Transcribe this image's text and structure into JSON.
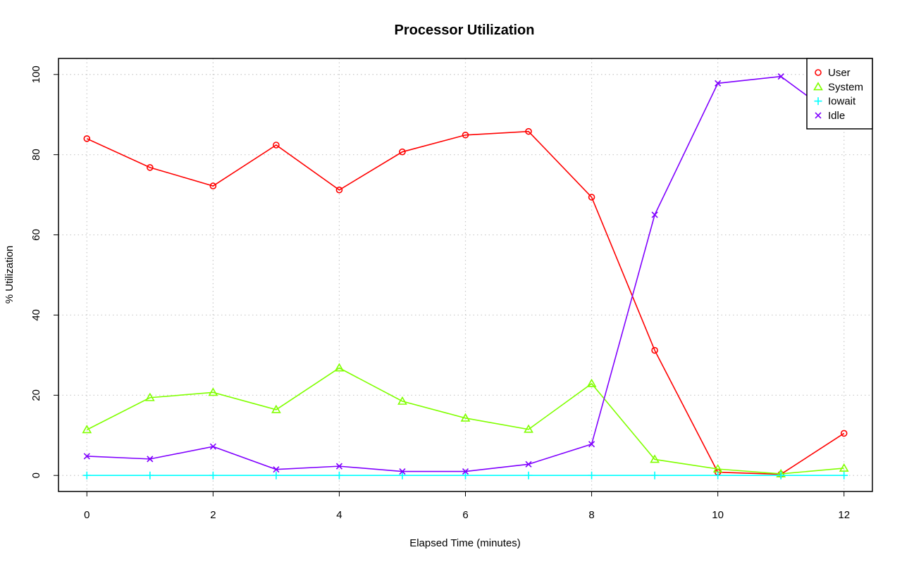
{
  "chart_data": {
    "type": "line",
    "title": "Processor Utilization",
    "xlabel": "Elapsed Time (minutes)",
    "ylabel": "% Utilization",
    "x": [
      0,
      1,
      2,
      3,
      4,
      5,
      6,
      7,
      8,
      9,
      10,
      11,
      12
    ],
    "xlim": [
      -0.45,
      12.45
    ],
    "ylim": [
      -4,
      104
    ],
    "xticks": [
      0,
      2,
      4,
      6,
      8,
      10,
      12
    ],
    "yticks": [
      0,
      20,
      40,
      60,
      80,
      100
    ],
    "grid": true,
    "legend_position": "top-right",
    "series": [
      {
        "name": "User",
        "color": "#ff0000",
        "marker": "circle",
        "values": [
          84,
          76.8,
          72.2,
          82.4,
          71.2,
          80.7,
          84.9,
          85.8,
          69.4,
          31.2,
          0.8,
          0.3,
          10.5
        ]
      },
      {
        "name": "System",
        "color": "#80ff00",
        "marker": "triangle",
        "values": [
          11.4,
          19.4,
          20.7,
          16.4,
          26.8,
          18.5,
          14.3,
          11.5,
          22.9,
          4,
          1.6,
          0.4,
          1.8
        ]
      },
      {
        "name": "Iowait",
        "color": "#00ffff",
        "marker": "plus",
        "values": [
          0,
          0,
          0,
          0,
          0,
          0,
          0,
          0,
          0,
          0,
          0,
          0,
          0
        ]
      },
      {
        "name": "Idle",
        "color": "#8000ff",
        "marker": "cross",
        "values": [
          4.8,
          4.1,
          7.2,
          1.5,
          2.3,
          1,
          1,
          2.8,
          7.8,
          65,
          97.8,
          99.5,
          87.9
        ]
      }
    ]
  }
}
